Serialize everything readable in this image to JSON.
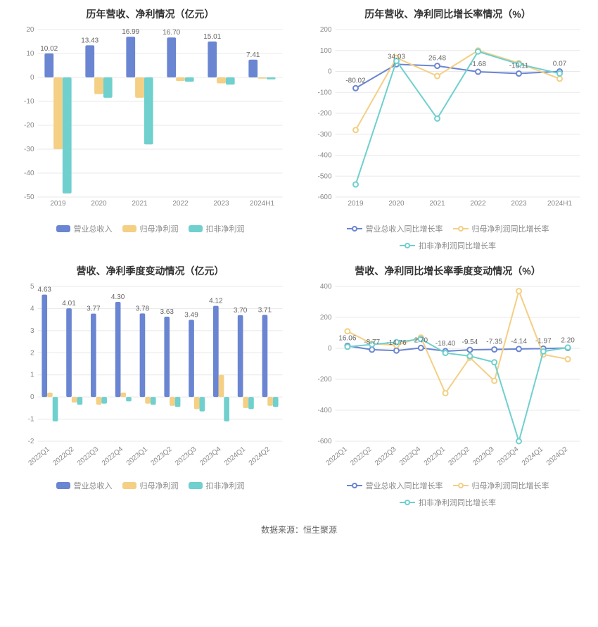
{
  "colors": {
    "blue": "#6a85d1",
    "yellow": "#f4cf84",
    "teal": "#6fd0ce",
    "grid": "#e8e8e8",
    "axis": "#888888",
    "text": "#888888",
    "value_label": "#666666",
    "title": "#333333",
    "bg": "#ffffff"
  },
  "charts": {
    "tl": {
      "title": "历年营收、净利情况（亿元）",
      "type": "bar",
      "categories": [
        "2019",
        "2020",
        "2021",
        "2022",
        "2023",
        "2024H1"
      ],
      "series": [
        {
          "name": "营业总收入",
          "color": "#6a85d1",
          "values": [
            10.02,
            13.43,
            16.99,
            16.7,
            15.01,
            7.41
          ]
        },
        {
          "name": "归母净利润",
          "color": "#f4cf84",
          "values": [
            -30.0,
            -7.0,
            -8.5,
            -1.5,
            -2.5,
            -0.5
          ]
        },
        {
          "name": "扣非净利润",
          "color": "#6fd0ce",
          "values": [
            -48.5,
            -8.5,
            -28.0,
            -1.8,
            -3.0,
            -0.8
          ]
        }
      ],
      "value_labels": [
        10.02,
        13.43,
        16.99,
        16.7,
        15.01,
        7.41
      ],
      "ylim": [
        -50,
        20
      ],
      "ytick_step": 10,
      "bar_width": 0.22,
      "legend": [
        "营业总收入",
        "归母净利润",
        "扣非净利润"
      ]
    },
    "tr": {
      "title": "历年营收、净利同比增长率情况（%）",
      "type": "line",
      "categories": [
        "2019",
        "2020",
        "2021",
        "2022",
        "2023",
        "2024H1"
      ],
      "series": [
        {
          "name": "营业总收入同比增长率",
          "color": "#6a85d1",
          "values": [
            -80.02,
            34.03,
            26.48,
            -1.68,
            -10.11,
            0.07
          ]
        },
        {
          "name": "归母净利润同比增长率",
          "color": "#f4cf84",
          "values": [
            -280,
            65,
            -22,
            100,
            40,
            -35
          ]
        },
        {
          "name": "扣非净利润同比增长率",
          "color": "#6fd0ce",
          "values": [
            -540,
            50,
            -225,
            95,
            35,
            -10
          ]
        }
      ],
      "value_labels": [
        -80.02,
        34.03,
        26.48,
        -1.68,
        -10.11,
        0.07
      ],
      "ylim": [
        -600,
        200
      ],
      "ytick_step": 100,
      "legend": [
        "营业总收入同比增长率",
        "归母净利润同比增长率",
        "扣非净利润同比增长率"
      ]
    },
    "bl": {
      "title": "营收、净利季度变动情况（亿元）",
      "type": "bar",
      "categories": [
        "2022Q1",
        "2022Q2",
        "2022Q3",
        "2022Q4",
        "2023Q1",
        "2023Q2",
        "2023Q3",
        "2023Q4",
        "2024Q1",
        "2024Q2"
      ],
      "rotate_x": true,
      "series": [
        {
          "name": "营业总收入",
          "color": "#6a85d1",
          "values": [
            4.63,
            4.01,
            3.77,
            4.3,
            3.78,
            3.63,
            3.49,
            4.12,
            3.7,
            3.71
          ]
        },
        {
          "name": "归母净利润",
          "color": "#f4cf84",
          "values": [
            0.2,
            -0.25,
            -0.35,
            0.2,
            -0.3,
            -0.4,
            -0.55,
            1.0,
            -0.5,
            -0.4
          ]
        },
        {
          "name": "扣非净利润",
          "color": "#6fd0ce",
          "values": [
            -1.1,
            -0.35,
            -0.3,
            -0.2,
            -0.35,
            -0.45,
            -0.65,
            -1.1,
            -0.55,
            -0.45
          ]
        }
      ],
      "value_labels": [
        4.63,
        4.01,
        3.77,
        4.3,
        3.78,
        3.63,
        3.49,
        4.12,
        3.7,
        3.71
      ],
      "ylim": [
        -2,
        5
      ],
      "ytick_step": 1,
      "bar_width": 0.22,
      "legend": [
        "营业总收入",
        "归母净利润",
        "扣非净利润"
      ]
    },
    "br": {
      "title": "营收、净利同比增长率季度变动情况（%）",
      "type": "line",
      "categories": [
        "2022Q1",
        "2022Q2",
        "2022Q3",
        "2022Q4",
        "2023Q1",
        "2023Q2",
        "2023Q3",
        "2023Q4",
        "2024Q1",
        "2024Q2"
      ],
      "rotate_x": true,
      "series": [
        {
          "name": "营业总收入同比增长率",
          "color": "#6a85d1",
          "values": [
            16.06,
            -8.77,
            -14.76,
            2.7,
            -18.4,
            -9.54,
            -7.35,
            -4.14,
            -1.97,
            2.2
          ]
        },
        {
          "name": "归母净利润同比增长率",
          "color": "#f4cf84",
          "values": [
            110,
            30,
            20,
            70,
            -290,
            -60,
            -210,
            370,
            -40,
            -70
          ]
        },
        {
          "name": "扣非净利润同比增长率",
          "color": "#6fd0ce",
          "values": [
            10,
            25,
            40,
            60,
            -30,
            -50,
            -90,
            -600,
            -20,
            5
          ]
        }
      ],
      "value_labels": [
        16.06,
        -8.77,
        -14.76,
        2.7,
        -18.4,
        -9.54,
        -7.35,
        -4.14,
        -1.97,
        2.2
      ],
      "ylim": [
        -600,
        400
      ],
      "ytick_step": 200,
      "legend": [
        "营业总收入同比增长率",
        "归母净利润同比增长率",
        "扣非净利润同比增长率"
      ]
    }
  },
  "footer": "数据来源：恒生聚源"
}
